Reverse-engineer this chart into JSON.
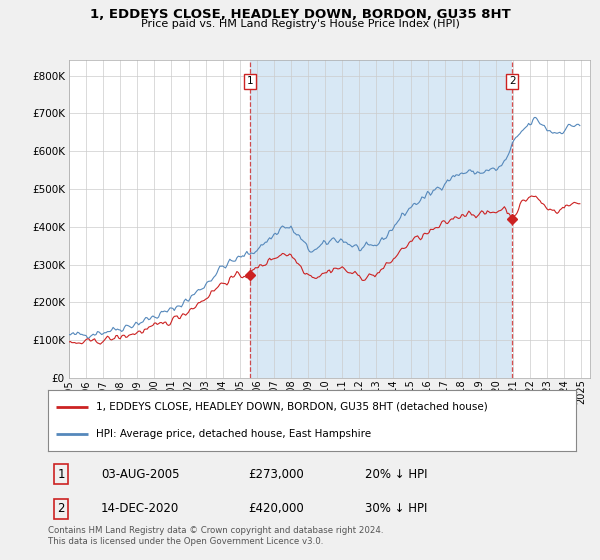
{
  "title_line1": "1, EDDEYS CLOSE, HEADLEY DOWN, BORDON, GU35 8HT",
  "title_line2": "Price paid vs. HM Land Registry's House Price Index (HPI)",
  "ylabel_values": [
    0,
    100000,
    200000,
    300000,
    400000,
    500000,
    600000,
    700000,
    800000
  ],
  "ylim": [
    0,
    840000
  ],
  "xlim_start": 1995.0,
  "xlim_end": 2025.5,
  "background_color": "#f0f0f0",
  "plot_bg_color": "#ffffff",
  "hpi_color": "#5588bb",
  "hpi_fill_color": "#d8e8f5",
  "price_color": "#cc2222",
  "marker1_x": 2005.58,
  "marker1_y": 273000,
  "marker2_x": 2020.95,
  "marker2_y": 420000,
  "legend_label1": "1, EDDEYS CLOSE, HEADLEY DOWN, BORDON, GU35 8HT (detached house)",
  "legend_label2": "HPI: Average price, detached house, East Hampshire",
  "sale1_label": "1",
  "sale1_date": "03-AUG-2005",
  "sale1_price": "£273,000",
  "sale1_hpi": "20% ↓ HPI",
  "sale2_label": "2",
  "sale2_date": "14-DEC-2020",
  "sale2_price": "£420,000",
  "sale2_hpi": "30% ↓ HPI",
  "footnote": "Contains HM Land Registry data © Crown copyright and database right 2024.\nThis data is licensed under the Open Government Licence v3.0.",
  "grid_color": "#cccccc",
  "xticks": [
    1995,
    1996,
    1997,
    1998,
    1999,
    2000,
    2001,
    2002,
    2003,
    2004,
    2005,
    2006,
    2007,
    2008,
    2009,
    2010,
    2011,
    2012,
    2013,
    2014,
    2015,
    2016,
    2017,
    2018,
    2019,
    2020,
    2021,
    2022,
    2023,
    2024,
    2025
  ]
}
